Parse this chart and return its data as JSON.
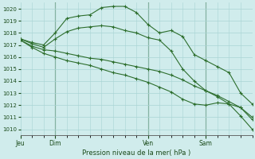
{
  "background_color": "#d0ecec",
  "grid_color": "#a8d4d4",
  "line_color": "#2d6e2d",
  "title": "Pression niveau de la mer( hPa )",
  "ylim": [
    1009.5,
    1020.5
  ],
  "yticks": [
    1010,
    1011,
    1012,
    1013,
    1014,
    1015,
    1016,
    1017,
    1018,
    1019,
    1020
  ],
  "xtick_labels": [
    "Jeu",
    "Dim",
    "Ven",
    "Sam"
  ],
  "xtick_positions": [
    0,
    3,
    11,
    16
  ],
  "vlines": [
    3,
    11,
    16
  ],
  "xlim": [
    0,
    20
  ],
  "series1_x": [
    0,
    1,
    2,
    3,
    4,
    5,
    6,
    7,
    8,
    9,
    10,
    11,
    12,
    13,
    14,
    15,
    16,
    17,
    18,
    19,
    20
  ],
  "series1": [
    1017.5,
    1017.2,
    1017.0,
    1018.0,
    1019.2,
    1019.4,
    1019.5,
    1020.1,
    1020.2,
    1020.2,
    1019.7,
    1018.7,
    1018.0,
    1018.2,
    1017.7,
    1016.2,
    1015.7,
    1015.2,
    1014.7,
    1013.0,
    1012.1
  ],
  "series2_x": [
    0,
    1,
    2,
    3,
    4,
    5,
    6,
    7,
    8,
    9,
    10,
    11,
    12,
    13,
    14,
    15,
    16,
    17,
    18,
    19,
    20
  ],
  "series2": [
    1017.5,
    1017.1,
    1016.8,
    1017.5,
    1018.1,
    1018.4,
    1018.5,
    1018.6,
    1018.5,
    1018.2,
    1018.0,
    1017.6,
    1017.4,
    1016.5,
    1015.0,
    1014.0,
    1013.2,
    1012.7,
    1012.1,
    1011.8,
    1010.8
  ],
  "series3_x": [
    0,
    1,
    2,
    3,
    4,
    5,
    6,
    7,
    8,
    9,
    10,
    11,
    12,
    13,
    14,
    15,
    16,
    17,
    18,
    19,
    20
  ],
  "series3": [
    1017.4,
    1016.9,
    1016.6,
    1016.5,
    1016.3,
    1016.1,
    1015.9,
    1015.8,
    1015.6,
    1015.4,
    1015.2,
    1015.0,
    1014.8,
    1014.5,
    1014.1,
    1013.6,
    1013.2,
    1012.8,
    1012.3,
    1011.8,
    1011.0
  ],
  "series4_x": [
    0,
    1,
    2,
    3,
    4,
    5,
    6,
    7,
    8,
    9,
    10,
    11,
    12,
    13,
    14,
    15,
    16,
    17,
    18,
    19,
    20
  ],
  "series4": [
    1017.4,
    1016.8,
    1016.3,
    1016.0,
    1015.7,
    1015.5,
    1015.3,
    1015.0,
    1014.7,
    1014.5,
    1014.2,
    1013.9,
    1013.5,
    1013.1,
    1012.5,
    1012.1,
    1012.0,
    1012.2,
    1012.1,
    1011.1,
    1010.0
  ]
}
